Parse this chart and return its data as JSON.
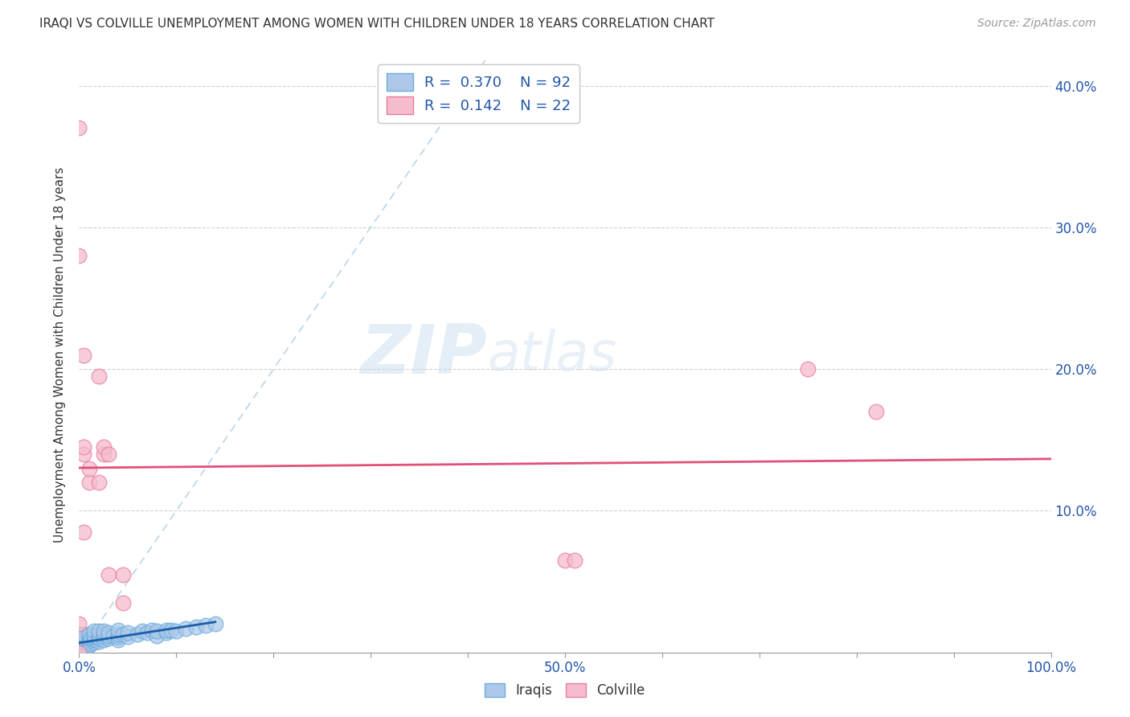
{
  "title": "IRAQI VS COLVILLE UNEMPLOYMENT AMONG WOMEN WITH CHILDREN UNDER 18 YEARS CORRELATION CHART",
  "source": "Source: ZipAtlas.com",
  "ylabel": "Unemployment Among Women with Children Under 18 years",
  "xlim": [
    0,
    1.0
  ],
  "ylim": [
    0,
    0.42
  ],
  "xtick_vals": [
    0.0,
    0.1,
    0.2,
    0.3,
    0.4,
    0.5,
    0.6,
    0.7,
    0.8,
    0.9,
    1.0
  ],
  "xtick_labels": [
    "0.0%",
    "",
    "",
    "",
    "",
    "50.0%",
    "",
    "",
    "",
    "",
    "100.0%"
  ],
  "ytick_vals": [
    0.0,
    0.1,
    0.2,
    0.3,
    0.4
  ],
  "ytick_labels": [
    "",
    "10.0%",
    "20.0%",
    "30.0%",
    "40.0%"
  ],
  "iraqis_color": "#adc8e8",
  "iraqis_edge_color": "#6aaee0",
  "colville_color": "#f5bccb",
  "colville_edge_color": "#e87fa0",
  "iraqis_R": 0.37,
  "iraqis_N": 92,
  "colville_R": 0.142,
  "colville_N": 22,
  "iraqis_trend_color": "#1a5fa8",
  "colville_trend_color": "#e0507a",
  "diagonal_color": "#b8d4ea",
  "iraqis_x": [
    0.0,
    0.0,
    0.0,
    0.0,
    0.0,
    0.0,
    0.0,
    0.0,
    0.0,
    0.0,
    0.0,
    0.0,
    0.0,
    0.0,
    0.0,
    0.0,
    0.0,
    0.0,
    0.0,
    0.0,
    0.0,
    0.0,
    0.0,
    0.0,
    0.0,
    0.0,
    0.0,
    0.0,
    0.0,
    0.0,
    0.0,
    0.0,
    0.0,
    0.0,
    0.0,
    0.0,
    0.005,
    0.005,
    0.005,
    0.005,
    0.005,
    0.005,
    0.01,
    0.01,
    0.01,
    0.01,
    0.01,
    0.01,
    0.01,
    0.012,
    0.012,
    0.012,
    0.015,
    0.015,
    0.015,
    0.015,
    0.015,
    0.015,
    0.02,
    0.02,
    0.02,
    0.02,
    0.02,
    0.025,
    0.025,
    0.025,
    0.025,
    0.03,
    0.03,
    0.03,
    0.035,
    0.04,
    0.04,
    0.04,
    0.04,
    0.045,
    0.05,
    0.05,
    0.06,
    0.065,
    0.07,
    0.075,
    0.08,
    0.08,
    0.09,
    0.09,
    0.095,
    0.1,
    0.11,
    0.12,
    0.13,
    0.14
  ],
  "iraqis_y": [
    0.0,
    0.0,
    0.0,
    0.0,
    0.0,
    0.0,
    0.0,
    0.0,
    0.0,
    0.0,
    0.0,
    0.0,
    0.005,
    0.005,
    0.005,
    0.005,
    0.005,
    0.005,
    0.005,
    0.005,
    0.007,
    0.007,
    0.008,
    0.008,
    0.008,
    0.009,
    0.009,
    0.009,
    0.01,
    0.01,
    0.01,
    0.01,
    0.011,
    0.011,
    0.012,
    0.013,
    0.0,
    0.005,
    0.008,
    0.01,
    0.011,
    0.013,
    0.005,
    0.007,
    0.008,
    0.01,
    0.01,
    0.012,
    0.013,
    0.006,
    0.009,
    0.01,
    0.007,
    0.009,
    0.01,
    0.011,
    0.012,
    0.015,
    0.008,
    0.01,
    0.011,
    0.013,
    0.015,
    0.009,
    0.011,
    0.013,
    0.015,
    0.01,
    0.012,
    0.014,
    0.012,
    0.009,
    0.011,
    0.013,
    0.016,
    0.013,
    0.011,
    0.014,
    0.013,
    0.015,
    0.014,
    0.016,
    0.012,
    0.015,
    0.014,
    0.016,
    0.016,
    0.015,
    0.017,
    0.018,
    0.019,
    0.02
  ],
  "colville_x": [
    0.0,
    0.0,
    0.0,
    0.0,
    0.005,
    0.005,
    0.005,
    0.005,
    0.01,
    0.01,
    0.02,
    0.02,
    0.025,
    0.025,
    0.03,
    0.03,
    0.045,
    0.045,
    0.5,
    0.51,
    0.75,
    0.82
  ],
  "colville_y": [
    0.0,
    0.02,
    0.37,
    0.28,
    0.085,
    0.14,
    0.145,
    0.21,
    0.12,
    0.13,
    0.12,
    0.195,
    0.14,
    0.145,
    0.055,
    0.14,
    0.055,
    0.035,
    0.065,
    0.065,
    0.2,
    0.17
  ]
}
